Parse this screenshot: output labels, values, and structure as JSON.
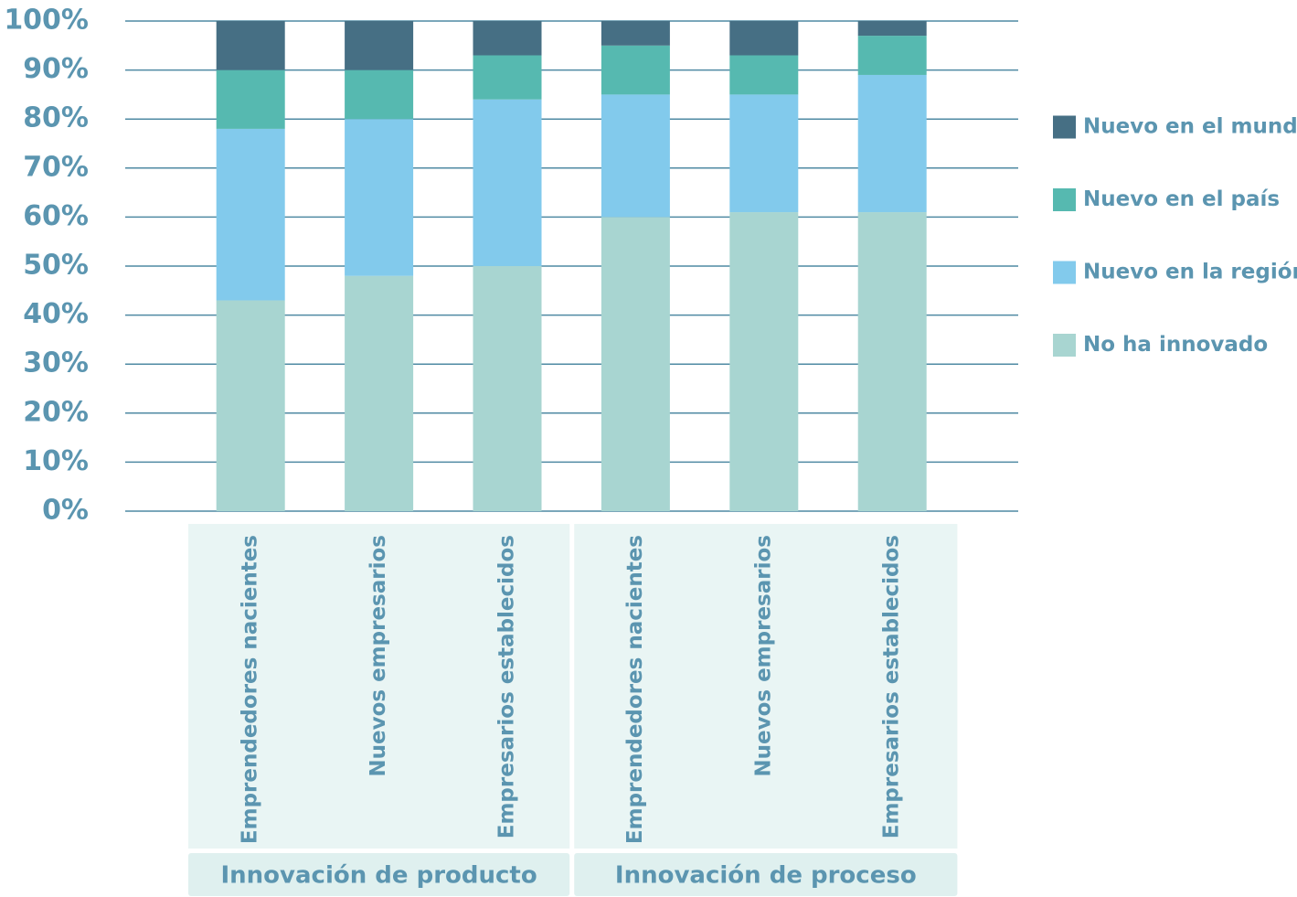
{
  "chart_data": {
    "type": "stacked_bar",
    "groups": [
      {
        "name": "Innovación de producto",
        "categories": [
          "Emprendedores nacientes",
          "Nuevos empresarios",
          "Empresarios establecidos"
        ]
      },
      {
        "name": "Innovación de proceso",
        "categories": [
          "Emprendedores nacientes",
          "Nuevos empresarios",
          "Empresarios establecidos"
        ]
      }
    ],
    "series": [
      {
        "name": "No ha innovado",
        "color": "#a8d5d1",
        "values": [
          43,
          48,
          50,
          60,
          61,
          61
        ]
      },
      {
        "name": "Nuevo en la región",
        "color": "#82caec",
        "values": [
          35,
          32,
          34,
          25,
          24,
          28
        ]
      },
      {
        "name": "Nuevo en el país",
        "color": "#56b9b0",
        "values": [
          12,
          10,
          9,
          10,
          8,
          8
        ]
      },
      {
        "name": "Nuevo en el mundo",
        "color": "#466f84",
        "values": [
          10,
          10,
          7,
          5,
          7,
          3
        ]
      }
    ],
    "ylim": [
      0,
      100
    ],
    "yticks": [
      {
        "value": 0,
        "label": "0%"
      },
      {
        "value": 10,
        "label": "10%"
      },
      {
        "value": 20,
        "label": "20%"
      },
      {
        "value": 30,
        "label": "30%"
      },
      {
        "value": 40,
        "label": "40%"
      },
      {
        "value": 50,
        "label": "50%"
      },
      {
        "value": 60,
        "label": "60%"
      },
      {
        "value": 70,
        "label": "70%"
      },
      {
        "value": 80,
        "label": "80%"
      },
      {
        "value": 90,
        "label": "90%"
      },
      {
        "value": 100,
        "label": "100%"
      }
    ],
    "grid": true,
    "legend": "right"
  }
}
